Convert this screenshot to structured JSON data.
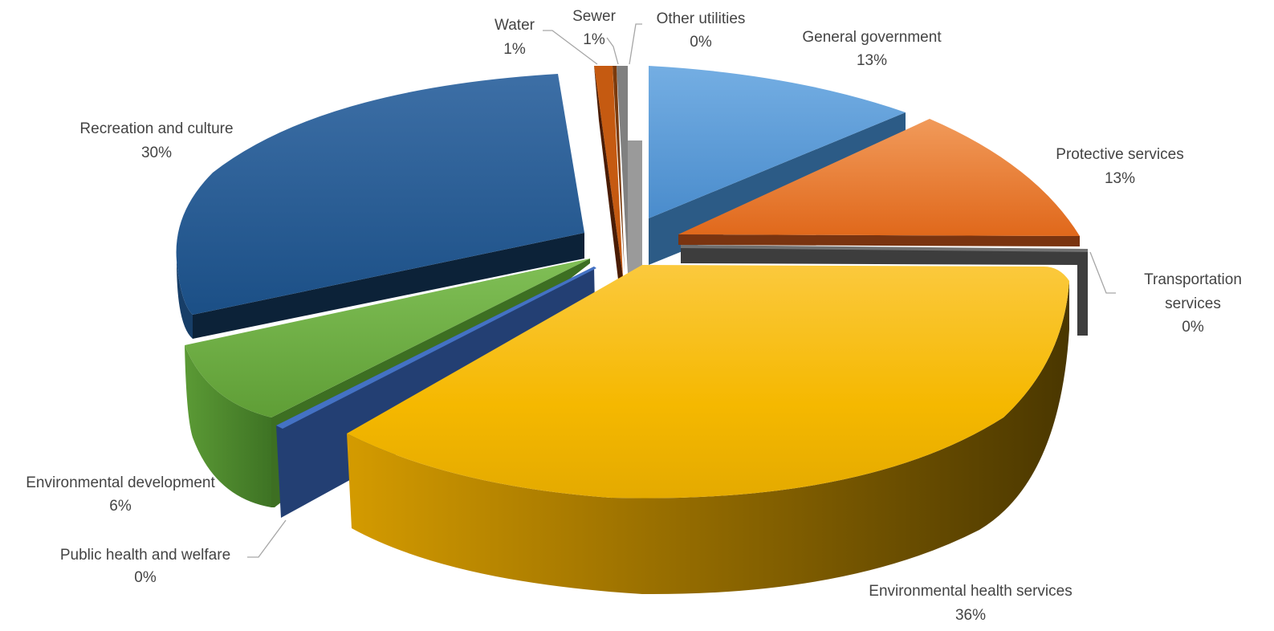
{
  "chart_data": {
    "type": "pie",
    "style": "3d-exploded",
    "title": "",
    "slices": [
      {
        "label": "General government",
        "percent_label": "13%",
        "value": 13,
        "color": "#5b9bd5"
      },
      {
        "label": "Protective services",
        "percent_label": "13%",
        "value": 13,
        "color": "#ed7d31"
      },
      {
        "label": "Transportation services",
        "percent_label": "0%",
        "value": 0,
        "color": "#4d4d4d"
      },
      {
        "label": "Environmental health services",
        "percent_label": "36%",
        "value": 36,
        "color": "#ffc000"
      },
      {
        "label": "Public health and welfare",
        "percent_label": "0%",
        "value": 0,
        "color": "#264478"
      },
      {
        "label": "Environmental development",
        "percent_label": "6%",
        "value": 6,
        "color": "#70ad47"
      },
      {
        "label": "Recreation and culture",
        "percent_label": "30%",
        "value": 30,
        "color": "#255e91"
      },
      {
        "label": "Water",
        "percent_label": "1%",
        "value": 1,
        "color": "#c55a11"
      },
      {
        "label": "Sewer",
        "percent_label": "1%",
        "value": 1,
        "color": "#9e480e"
      },
      {
        "label": "Other utilities",
        "percent_label": "0%",
        "value": 0,
        "color": "#7f7f7f"
      }
    ]
  }
}
